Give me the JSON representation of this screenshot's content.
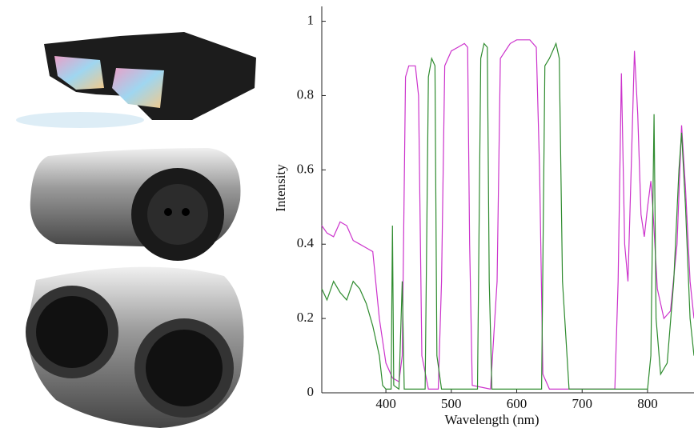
{
  "chart_data": {
    "type": "line",
    "xlabel": "Wavelength (nm)",
    "ylabel": "Intensity",
    "xlim": [
      302,
      871
    ],
    "ylim": [
      0,
      1.04
    ],
    "xticks": [
      400,
      500,
      600,
      700,
      800
    ],
    "yticks": [
      0,
      0.2,
      0.4,
      0.6,
      0.8,
      1
    ],
    "series": [
      {
        "color": "#cc33cc",
        "x": [
          302,
          310,
          320,
          330,
          340,
          350,
          360,
          370,
          380,
          390,
          400,
          410,
          420,
          425,
          430,
          435,
          445,
          450,
          455,
          465,
          480,
          485,
          490,
          500,
          510,
          520,
          525,
          528,
          532,
          560,
          570,
          575,
          590,
          600,
          620,
          630,
          635,
          640,
          650,
          750,
          755,
          760,
          765,
          770,
          775,
          780,
          785,
          790,
          795,
          800,
          805,
          808,
          815,
          825,
          835,
          845,
          852,
          858,
          865,
          871
        ],
        "values": [
          0.45,
          0.43,
          0.42,
          0.46,
          0.45,
          0.41,
          0.4,
          0.39,
          0.38,
          0.2,
          0.08,
          0.04,
          0.03,
          0.1,
          0.85,
          0.88,
          0.88,
          0.8,
          0.1,
          0.01,
          0.01,
          0.3,
          0.88,
          0.92,
          0.93,
          0.94,
          0.93,
          0.4,
          0.02,
          0.01,
          0.3,
          0.9,
          0.94,
          0.95,
          0.95,
          0.93,
          0.6,
          0.05,
          0.01,
          0.01,
          0.3,
          0.86,
          0.4,
          0.3,
          0.6,
          0.92,
          0.75,
          0.48,
          0.42,
          0.5,
          0.57,
          0.5,
          0.28,
          0.2,
          0.22,
          0.4,
          0.72,
          0.55,
          0.3,
          0.2
        ]
      },
      {
        "color": "#2e8b2e",
        "x": [
          302,
          310,
          320,
          330,
          340,
          350,
          360,
          370,
          380,
          390,
          395,
          400,
          408,
          410,
          412,
          420,
          425,
          428,
          460,
          465,
          470,
          475,
          478,
          485,
          540,
          545,
          550,
          555,
          558,
          562,
          638,
          643,
          650,
          660,
          665,
          670,
          680,
          800,
          805,
          810,
          813,
          820,
          830,
          840,
          848,
          852,
          858,
          865,
          871
        ],
        "values": [
          0.28,
          0.25,
          0.3,
          0.27,
          0.25,
          0.3,
          0.28,
          0.24,
          0.18,
          0.1,
          0.02,
          0.01,
          0.01,
          0.45,
          0.02,
          0.01,
          0.3,
          0.01,
          0.01,
          0.85,
          0.9,
          0.88,
          0.1,
          0.01,
          0.01,
          0.9,
          0.94,
          0.93,
          0.3,
          0.01,
          0.01,
          0.88,
          0.9,
          0.94,
          0.9,
          0.3,
          0.01,
          0.01,
          0.1,
          0.75,
          0.2,
          0.05,
          0.08,
          0.3,
          0.6,
          0.7,
          0.5,
          0.2,
          0.1
        ]
      }
    ]
  }
}
